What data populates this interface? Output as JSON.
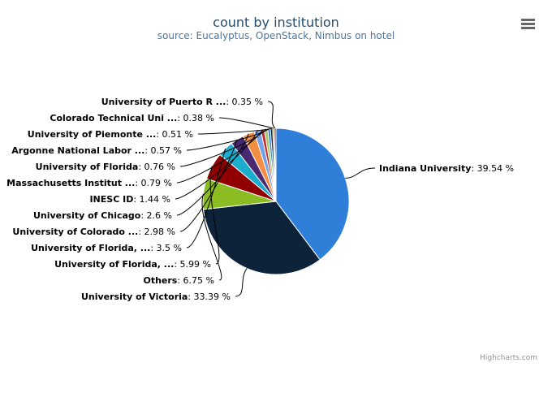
{
  "chart_data": {
    "type": "pie",
    "title": "count by institution",
    "subtitle": "source: Eucalyptus, OpenStack, Nimbus on hotel",
    "slices": [
      {
        "label": "Indiana University",
        "value": 39.54,
        "color": "#2f7ed8"
      },
      {
        "label": "University of Victoria",
        "value": 33.39,
        "color": "#0d233a"
      },
      {
        "label": "Others",
        "value": 6.75,
        "color": "#8bbc21"
      },
      {
        "label": "University of Florida, ...",
        "value": 5.99,
        "color": "#910000"
      },
      {
        "label": "University of Florida, ...",
        "value": 3.5,
        "color": "#1aadce"
      },
      {
        "label": "University of Colorado ...",
        "value": 2.98,
        "color": "#492970"
      },
      {
        "label": "University of Chicago",
        "value": 2.6,
        "color": "#f28f43"
      },
      {
        "label": "INESC ID",
        "value": 1.44,
        "color": "#77a1e5"
      },
      {
        "label": "Massachusetts Institut ...",
        "value": 0.79,
        "color": "#c42525"
      },
      {
        "label": "University of Florida",
        "value": 0.76,
        "color": "#a6c96a"
      },
      {
        "label": "Argonne National Labor ...",
        "value": 0.57,
        "color": "#2f7ed8"
      },
      {
        "label": "University of Piemonte ...",
        "value": 0.51,
        "color": "#0d233a"
      },
      {
        "label": "Colorado Technical Uni ...",
        "value": 0.38,
        "color": "#8bbc21"
      },
      {
        "label": "University of Puerto R ...",
        "value": 0.35,
        "color": "#910000"
      }
    ],
    "value_suffix": " %",
    "legend": "none"
  },
  "credits": "Highcharts.com",
  "menu_icon": "hamburger-menu-icon"
}
